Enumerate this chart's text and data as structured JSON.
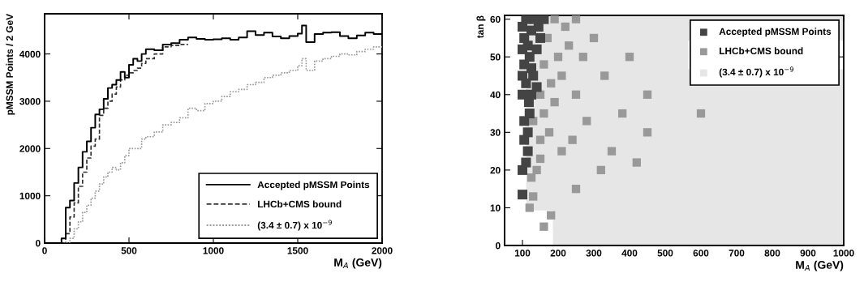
{
  "chart_data": [
    {
      "type": "step",
      "xlabel": "M$_{A}$ (GeV)",
      "ylabel": "pMSSM Points / 2 GeV",
      "xlim": [
        0,
        2000
      ],
      "ylim": [
        0,
        4850
      ],
      "xticks": [
        0,
        500,
        1000,
        1500,
        2000
      ],
      "yticks": [
        0,
        1000,
        2000,
        3000,
        4000
      ],
      "grid": false,
      "legend": "bottom right",
      "marker": "none",
      "series": [
        {
          "name": "Accepted pMSSM Points",
          "color": "#000000",
          "line_style": "solid",
          "x": [
            0,
            25,
            50,
            75,
            100,
            125,
            150,
            175,
            200,
            225,
            250,
            275,
            300,
            325,
            350,
            375,
            400,
            425,
            450,
            475,
            500,
            525,
            550,
            575,
            600,
            650,
            700,
            750,
            800,
            850,
            900,
            950,
            1000,
            1050,
            1100,
            1150,
            1200,
            1250,
            1300,
            1350,
            1400,
            1450,
            1500,
            1525,
            1550,
            1600,
            1650,
            1700,
            1750,
            1800,
            1850,
            1900,
            1950,
            2000
          ],
          "values": [
            0,
            0,
            0,
            0,
            100,
            750,
            900,
            1270,
            1600,
            1930,
            2150,
            2440,
            2720,
            2830,
            3050,
            3280,
            3350,
            3450,
            3620,
            3500,
            3770,
            3900,
            3850,
            4000,
            4100,
            4080,
            4200,
            4230,
            4300,
            4350,
            4320,
            4300,
            4310,
            4330,
            4300,
            4350,
            4480,
            4400,
            4450,
            4370,
            4330,
            4380,
            4430,
            4600,
            4250,
            4420,
            4450,
            4460,
            4380,
            4330,
            4390,
            4450,
            4420,
            4420
          ]
        },
        {
          "name": "LHCb+CMS bound",
          "color": "#333333",
          "line_style": "dashed",
          "x": [
            0,
            25,
            50,
            75,
            100,
            125,
            150,
            175,
            200,
            225,
            250,
            275,
            300,
            325,
            350,
            375,
            400,
            425,
            450,
            475,
            500,
            525,
            550,
            575,
            600,
            650,
            700,
            750,
            800,
            850
          ],
          "values": [
            0,
            0,
            0,
            0,
            0,
            200,
            550,
            850,
            1200,
            1500,
            1800,
            2050,
            2200,
            2700,
            2850,
            3000,
            3150,
            3300,
            3450,
            3550,
            3600,
            3650,
            3700,
            3800,
            3900,
            4000,
            4150,
            4180,
            4200,
            4200
          ]
        },
        {
          "name": "(3.4 ± 0.7) x 10$^{−9}$",
          "color": "#999999",
          "line_style": "dotted",
          "x": [
            0,
            25,
            50,
            75,
            100,
            125,
            150,
            175,
            200,
            225,
            250,
            275,
            300,
            325,
            350,
            375,
            400,
            425,
            450,
            475,
            500,
            550,
            575,
            600,
            650,
            700,
            750,
            800,
            850,
            900,
            950,
            1000,
            1050,
            1100,
            1150,
            1200,
            1250,
            1300,
            1350,
            1400,
            1450,
            1500,
            1525,
            1550,
            1600,
            1650,
            1700,
            1750,
            1800,
            1850,
            1900,
            1950,
            2000
          ],
          "values": [
            0,
            0,
            0,
            0,
            0,
            0,
            100,
            300,
            450,
            650,
            800,
            950,
            1100,
            1250,
            1400,
            1500,
            1600,
            1550,
            1700,
            1850,
            2000,
            2000,
            2200,
            2250,
            2350,
            2500,
            2550,
            2650,
            2850,
            2800,
            2950,
            3000,
            3100,
            3200,
            3250,
            3350,
            3400,
            3500,
            3550,
            3600,
            3650,
            3750,
            3900,
            3650,
            3850,
            3900,
            3950,
            4000,
            3980,
            4050,
            4100,
            4150,
            4150
          ]
        }
      ]
    },
    {
      "type": "scatter",
      "xlabel": "M$_{A}$ (GeV)",
      "ylabel": "tan β",
      "xlim": [
        50,
        1000
      ],
      "ylim": [
        0,
        61
      ],
      "xticks": [
        100,
        200,
        300,
        400,
        500,
        600,
        700,
        800,
        900,
        1000
      ],
      "yticks": [
        0,
        10,
        20,
        30,
        40,
        50,
        60
      ],
      "grid": false,
      "legend": "top right",
      "marker": "square",
      "series": [
        {
          "name": "(3.4 ± 0.7) x 10$^{−9}$",
          "color": "#e6e6e6",
          "x": [
            150,
            150,
            150,
            150,
            150,
            150,
            150,
            150,
            150,
            150,
            225,
            225,
            225,
            225,
            225,
            225,
            225,
            225,
            225,
            225,
            225,
            225,
            300,
            300,
            300,
            300,
            300,
            300,
            300,
            300,
            300,
            300,
            300,
            300,
            375,
            375,
            375,
            375,
            375,
            375,
            375,
            375,
            375,
            375,
            375,
            375,
            450,
            450,
            450,
            450,
            450,
            450,
            450,
            450,
            450,
            450,
            450,
            450,
            525,
            525,
            525,
            525,
            525,
            525,
            525,
            525,
            525,
            525,
            525,
            525,
            600,
            600,
            600,
            600,
            600,
            600,
            600,
            600,
            600,
            600,
            675,
            675,
            675,
            675,
            675,
            675,
            675,
            675,
            675,
            675,
            750,
            750,
            750,
            750,
            750,
            750,
            750,
            750,
            750,
            750,
            825,
            825,
            825,
            825,
            825,
            825,
            825,
            825,
            825,
            825,
            900,
            900,
            900,
            900,
            900,
            900,
            900,
            900,
            900,
            900,
            975,
            975,
            975,
            975,
            975,
            975,
            975,
            975,
            975,
            975
          ],
          "values": [
            13,
            18,
            23,
            28,
            33,
            38,
            43,
            48,
            53,
            58,
            3,
            8,
            13,
            18,
            23,
            28,
            33,
            38,
            43,
            48,
            53,
            58,
            3,
            8,
            13,
            18,
            23,
            28,
            33,
            38,
            43,
            48,
            53,
            58,
            3,
            8,
            13,
            18,
            23,
            28,
            33,
            38,
            43,
            48,
            53,
            58,
            3,
            8,
            13,
            18,
            23,
            28,
            33,
            38,
            43,
            48,
            53,
            58,
            3,
            8,
            13,
            18,
            23,
            28,
            33,
            38,
            43,
            48,
            53,
            58,
            3,
            8,
            13,
            18,
            23,
            28,
            33,
            38,
            43,
            58,
            3,
            8,
            13,
            18,
            23,
            28,
            33,
            38,
            43,
            58,
            3,
            8,
            13,
            18,
            23,
            28,
            33,
            38,
            43,
            58,
            3,
            8,
            13,
            18,
            23,
            28,
            33,
            38,
            43,
            58,
            3,
            8,
            13,
            18,
            23,
            28,
            33,
            38,
            43,
            58,
            3,
            8,
            13,
            18,
            23,
            28,
            33,
            38,
            43,
            58
          ]
        },
        {
          "name": "LHCb+CMS bound",
          "color": "#999999",
          "x": [
            120,
            130,
            125,
            140,
            150,
            150,
            175,
            130,
            160,
            190,
            150,
            180,
            210,
            160,
            200,
            230,
            170,
            220,
            250,
            190,
            270,
            250,
            300,
            330,
            280,
            350,
            400,
            380,
            450,
            450,
            600,
            320,
            420,
            250,
            180,
            160,
            210,
            240
          ],
          "values": [
            10,
            13,
            18,
            20,
            23,
            28,
            30,
            33,
            35,
            38,
            40,
            43,
            45,
            48,
            50,
            53,
            55,
            58,
            60,
            60,
            50,
            40,
            55,
            45,
            33,
            25,
            50,
            35,
            40,
            30,
            35,
            20,
            22,
            15,
            8,
            5,
            25,
            28
          ]
        },
        {
          "name": "Accepted pMSSM Points",
          "color": "#444444",
          "x": [
            100,
            100,
            110,
            105,
            115,
            105,
            120,
            125,
            110,
            130,
            105,
            120,
            140,
            105,
            125,
            145,
            110,
            135,
            160,
            115,
            125,
            115,
            140,
            100,
            100,
            100,
            100,
            118,
            150
          ],
          "values": [
            13.5,
            20,
            22,
            28,
            30,
            33,
            35,
            40,
            43,
            45,
            48,
            50,
            52,
            55,
            57,
            58,
            60,
            60,
            60,
            25,
            47,
            53,
            42,
            45,
            52,
            40,
            58,
            38,
            55
          ]
        }
      ]
    }
  ]
}
